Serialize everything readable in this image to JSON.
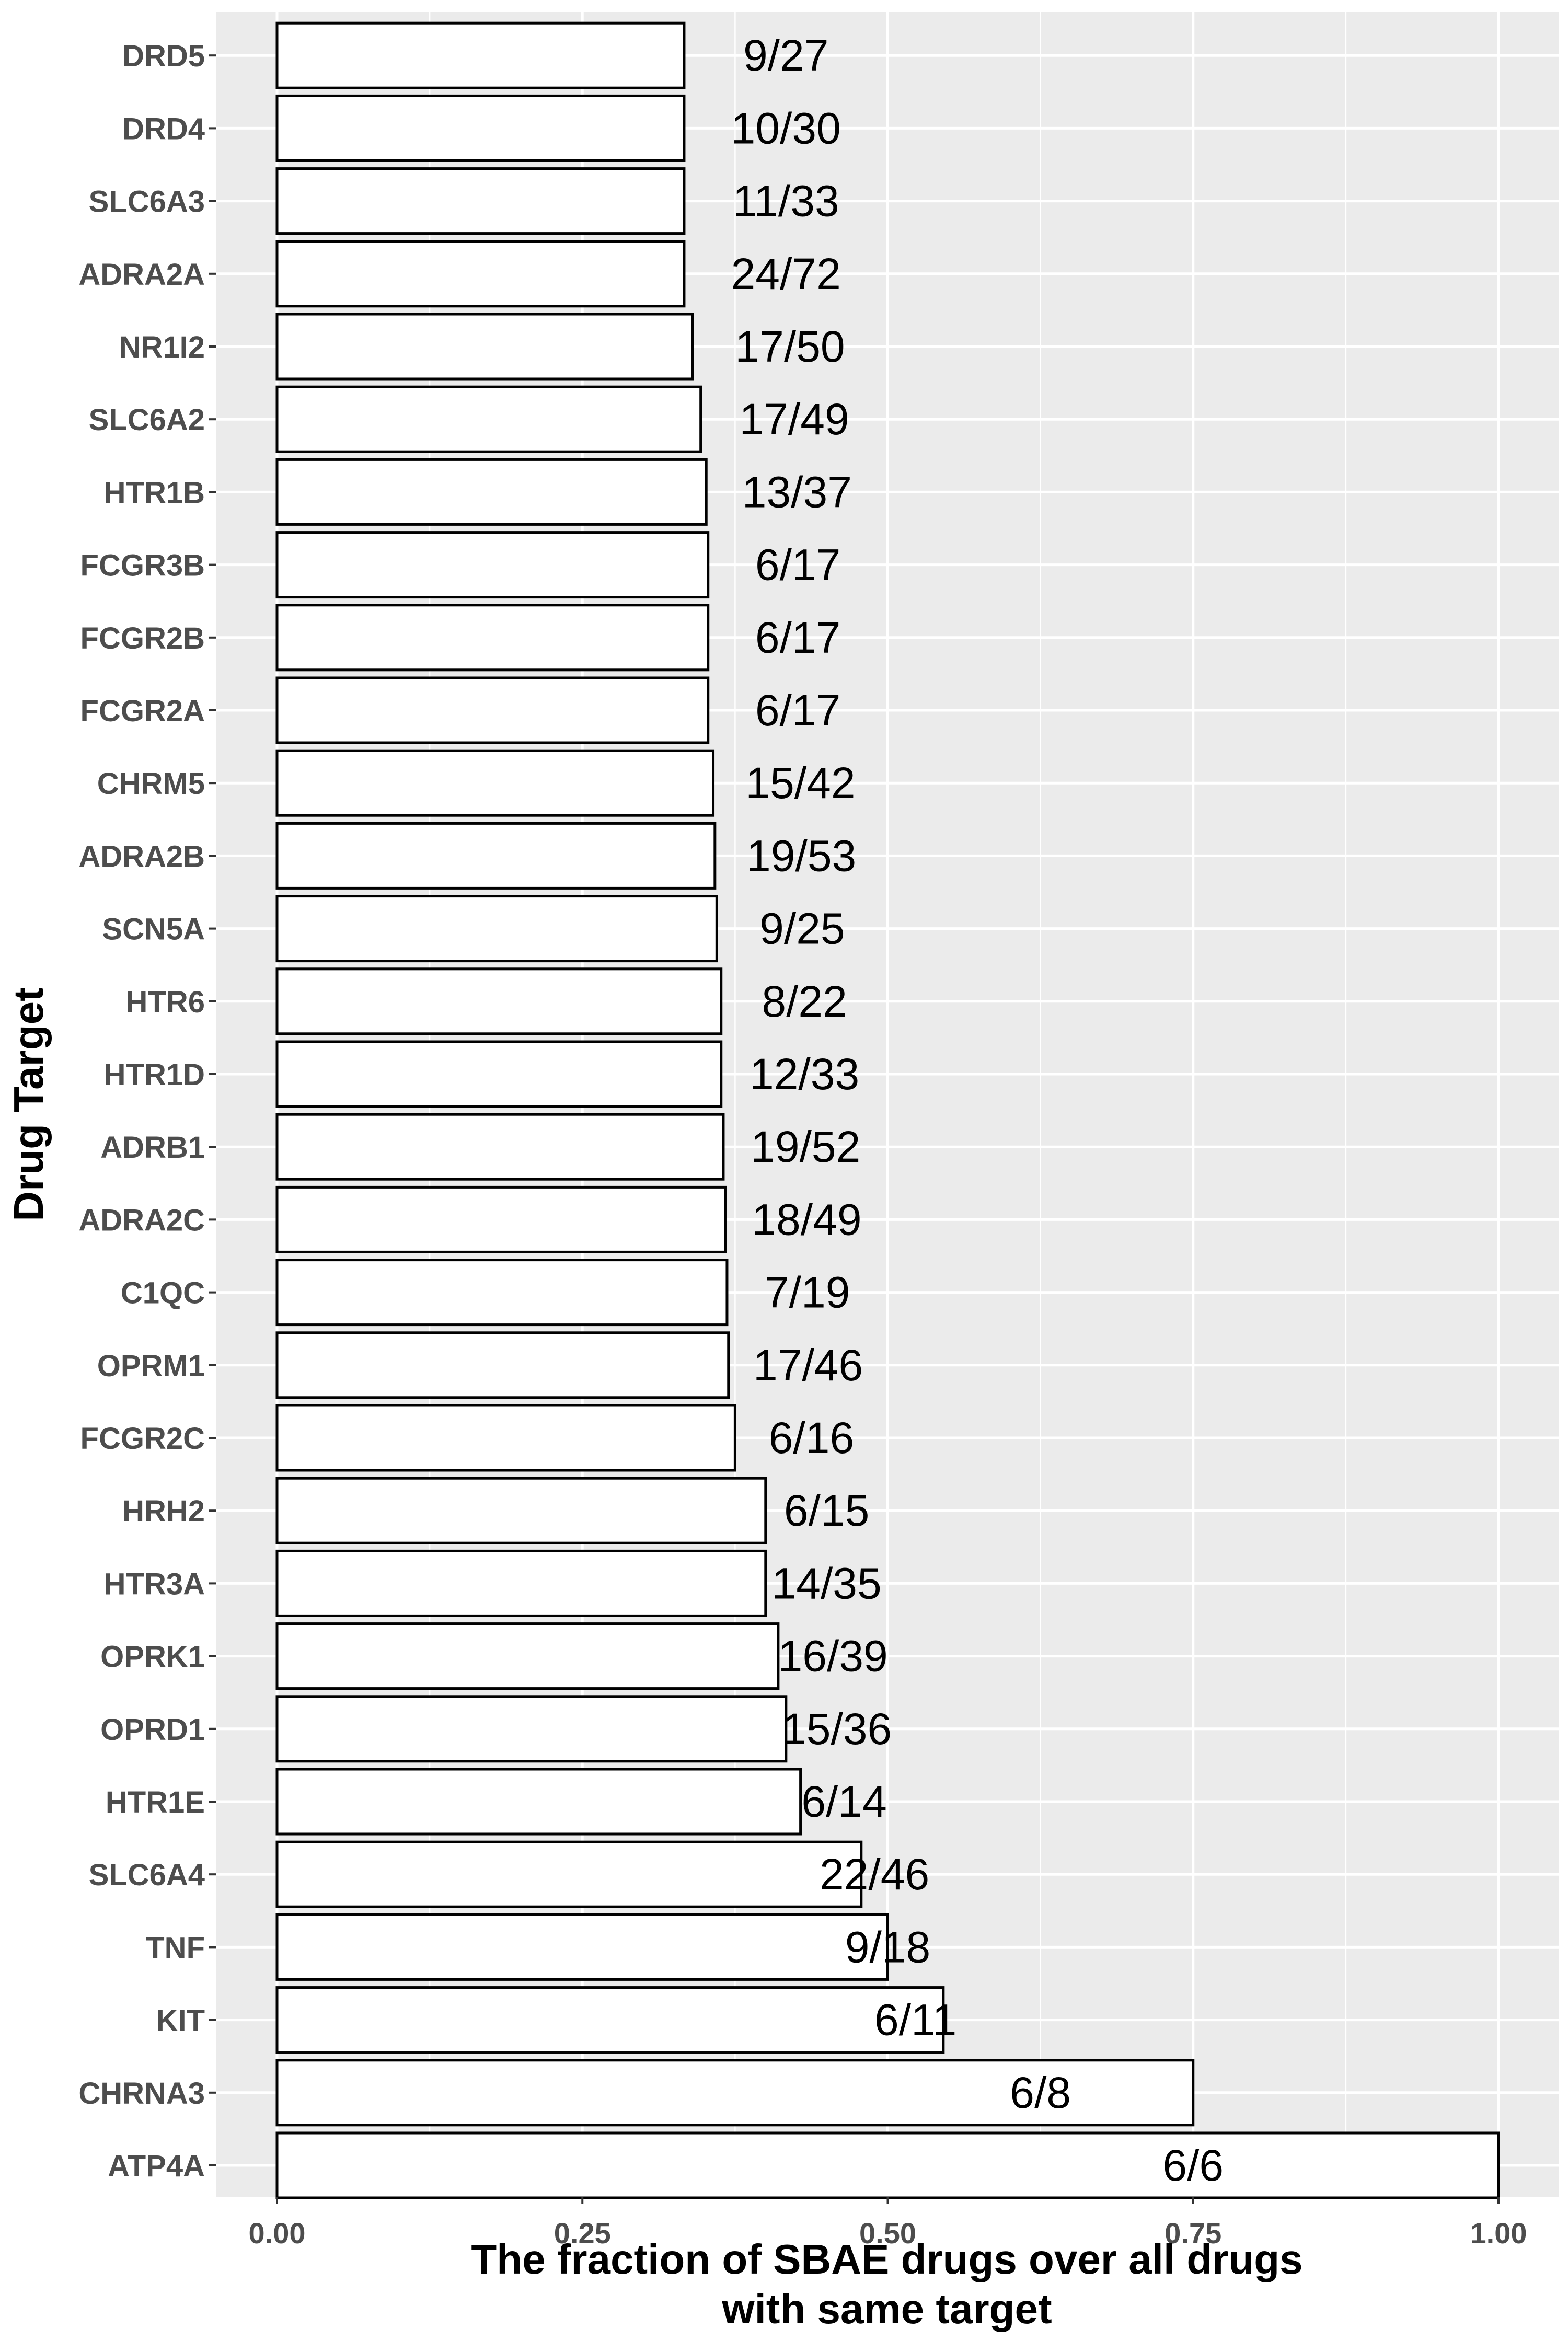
{
  "chart_data": {
    "type": "bar",
    "orientation": "horizontal",
    "xlabel": [
      "The fraction of SBAE drugs over all drugs",
      "with same target"
    ],
    "ylabel": "Drug Target",
    "xlim": [
      0,
      1
    ],
    "x_ticks": [
      "0.00",
      "0.25",
      "0.50",
      "0.75",
      "1.00"
    ],
    "grid": true,
    "colors": {
      "panel": "#ebebeb",
      "grid": "#ffffff",
      "bar_fill": "#ffffff",
      "bar_stroke": "#000000",
      "tick_text": "#4d4d4d"
    },
    "categories": [
      "DRD5",
      "DRD4",
      "SLC6A3",
      "ADRA2A",
      "NR1I2",
      "SLC6A2",
      "HTR1B",
      "FCGR3B",
      "FCGR2B",
      "FCGR2A",
      "CHRM5",
      "ADRA2B",
      "SCN5A",
      "HTR6",
      "HTR1D",
      "ADRB1",
      "ADRA2C",
      "C1QC",
      "OPRM1",
      "FCGR2C",
      "HRH2",
      "HTR3A",
      "OPRK1",
      "OPRD1",
      "HTR1E",
      "SLC6A4",
      "TNF",
      "KIT",
      "CHRNA3",
      "ATP4A"
    ],
    "values": [
      0.3333,
      0.3333,
      0.3333,
      0.3333,
      0.34,
      0.3469,
      0.3514,
      0.3529,
      0.3529,
      0.3529,
      0.3571,
      0.3585,
      0.36,
      0.3636,
      0.3636,
      0.3654,
      0.3673,
      0.3684,
      0.3696,
      0.375,
      0.4,
      0.4,
      0.4103,
      0.4167,
      0.4286,
      0.4783,
      0.5,
      0.5455,
      0.75,
      1.0
    ],
    "labels": [
      "9/27",
      "10/30",
      "11/33",
      "24/72",
      "17/50",
      "17/49",
      "13/37",
      "6/17",
      "6/17",
      "6/17",
      "15/42",
      "19/53",
      "9/25",
      "8/22",
      "12/33",
      "19/52",
      "18/49",
      "7/19",
      "17/46",
      "6/16",
      "6/15",
      "14/35",
      "16/39",
      "15/36",
      "6/14",
      "22/46",
      "9/18",
      "6/11",
      "6/8",
      "6/6"
    ]
  }
}
